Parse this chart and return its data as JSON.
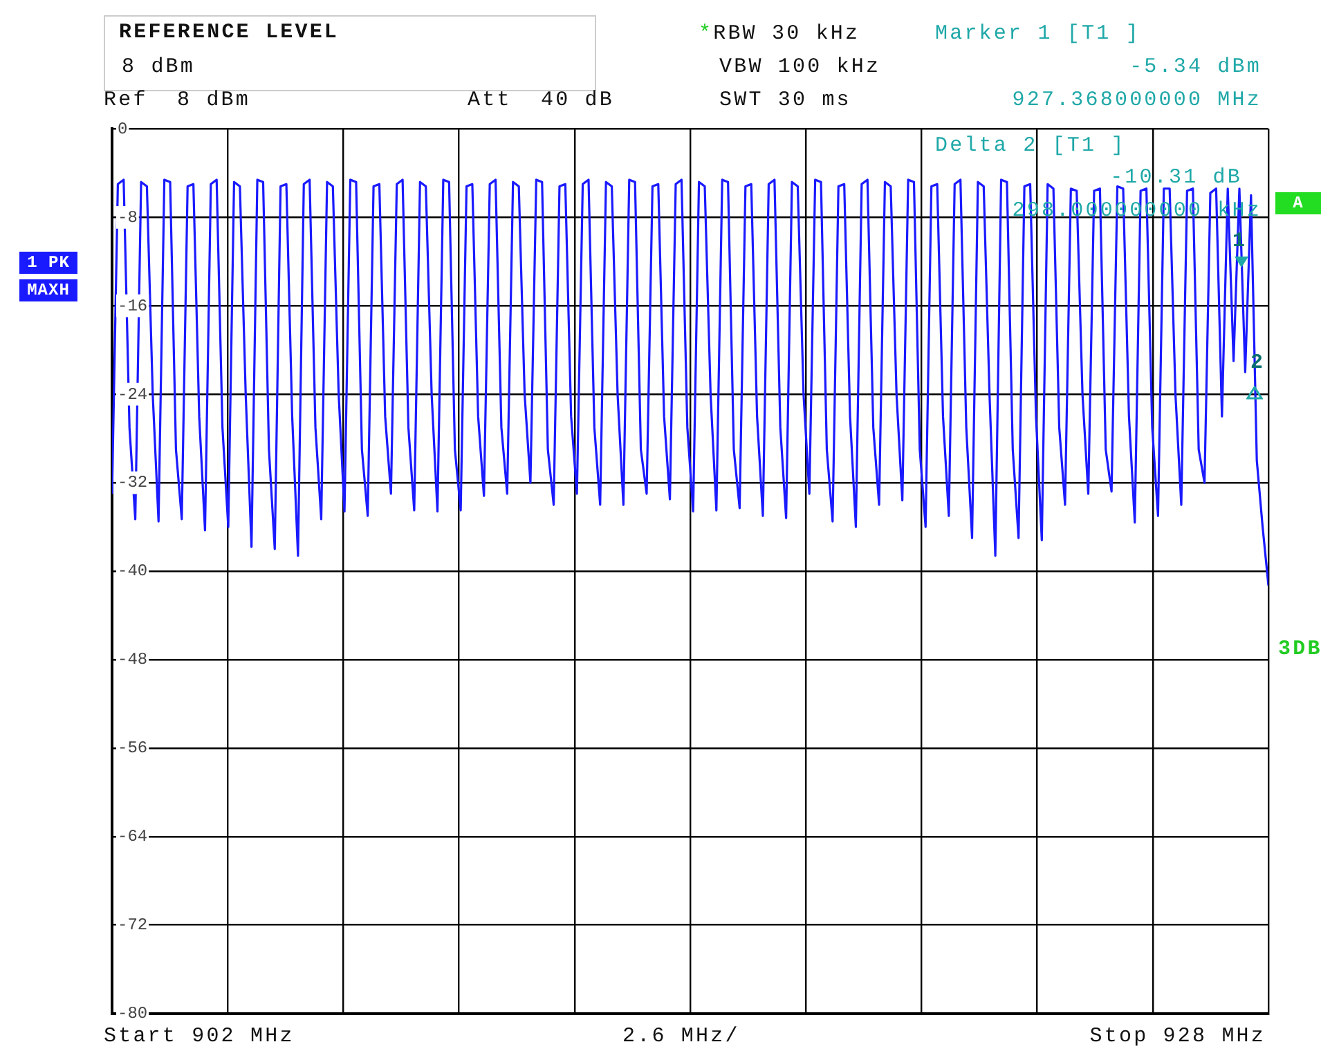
{
  "chart_data": {
    "type": "line",
    "ylim": [
      -80,
      0
    ],
    "categories": [
      null,
      null,
      null,
      null,
      null,
      null,
      null,
      null,
      null,
      null,
      null,
      null,
      null,
      null,
      null,
      null,
      null,
      null,
      null,
      null,
      null,
      null,
      null,
      null,
      null,
      null,
      null,
      null,
      null,
      null,
      null,
      null,
      null,
      null,
      null,
      null,
      null,
      null,
      null,
      null,
      null,
      null,
      null,
      null,
      null,
      null,
      null,
      null,
      null,
      null,
      null,
      null,
      null,
      null,
      null,
      null,
      null,
      null,
      null,
      null,
      null,
      null,
      null,
      null,
      null,
      null,
      null,
      null,
      null,
      null,
      null,
      null,
      null,
      null,
      null,
      null,
      null,
      null,
      null,
      null,
      null,
      null,
      null,
      null,
      null,
      null,
      null,
      null,
      null,
      null,
      null,
      null,
      null,
      null,
      null,
      null,
      null,
      null,
      null,
      null,
      null,
      null,
      null,
      null,
      null,
      null,
      null,
      null,
      null,
      null,
      null,
      null,
      null,
      null,
      null,
      null,
      null,
      null,
      null,
      null,
      null,
      null,
      null,
      null,
      null,
      null,
      null,
      null,
      null,
      null,
      null,
      null,
      null,
      null,
      null,
      null,
      null,
      null,
      null,
      null,
      null,
      null,
      null,
      null,
      null,
      null,
      null,
      null,
      null,
      null,
      null,
      null,
      null,
      null,
      null,
      null,
      null,
      null,
      null,
      null,
      null,
      null,
      null,
      null,
      null,
      null,
      null,
      null,
      null,
      null,
      null,
      null,
      null,
      null,
      null,
      null,
      null,
      null,
      null,
      null,
      null,
      null,
      null,
      null,
      null,
      null,
      null,
      null,
      null,
      null,
      null,
      null,
      null,
      null,
      null,
      null,
      null,
      null,
      null,
      null
    ],
    "yticks": [
      0,
      -8,
      -16,
      -24,
      -32,
      -40,
      -48,
      -56,
      -64,
      -72,
      -80
    ],
    "tick_labels": "y",
    "grid": true,
    "marker": "none",
    "line_style": "solid",
    "series": [
      {
        "color": "#1a1aff",
        "values": [
          -33,
          -5,
          -4.6,
          -27,
          -35.3,
          -4.8,
          -5.2,
          -24,
          -35.5,
          -4.6,
          -4.8,
          -29,
          -35.3,
          -5.2,
          -5,
          -26,
          -36.3,
          -5,
          -4.6,
          -27,
          -36,
          -4.8,
          -5.2,
          -24,
          -37.8,
          -4.6,
          -4.8,
          -29,
          -38,
          -5.2,
          -5,
          -26,
          -38.6,
          -5,
          -4.6,
          -27,
          -35.3,
          -4.8,
          -5.2,
          -24,
          -34.6,
          -4.6,
          -4.8,
          -29,
          -35,
          -5.2,
          -5,
          -26,
          -33,
          -5,
          -4.6,
          -27,
          -34.5,
          -4.8,
          -5.2,
          -24,
          -34.6,
          -4.6,
          -4.8,
          -29,
          -34.5,
          -5.2,
          -5,
          -26,
          -33.2,
          -5,
          -4.6,
          -27,
          -33,
          -4.8,
          -5.2,
          -24,
          -32,
          -4.6,
          -4.8,
          -29,
          -34,
          -5.2,
          -5,
          -26,
          -33,
          -5,
          -4.6,
          -27,
          -34,
          -4.8,
          -5.2,
          -24,
          -34,
          -4.6,
          -4.8,
          -29,
          -33,
          -5.2,
          -5,
          -26,
          -33.5,
          -5,
          -4.6,
          -27,
          -34.6,
          -4.8,
          -5.2,
          -24,
          -34.5,
          -4.6,
          -4.8,
          -29,
          -34.3,
          -5.2,
          -5,
          -26,
          -35,
          -5,
          -4.6,
          -27,
          -35.2,
          -4.8,
          -5.2,
          -24,
          -33,
          -4.6,
          -4.8,
          -29,
          -35.5,
          -5.2,
          -5,
          -26,
          -36,
          -5,
          -4.6,
          -27,
          -34,
          -4.8,
          -5.2,
          -24,
          -33.6,
          -4.6,
          -4.8,
          -29,
          -36,
          -5.2,
          -5,
          -26,
          -35,
          -5,
          -4.6,
          -27,
          -37,
          -4.8,
          -5.2,
          -24,
          -38.6,
          -4.6,
          -4.8,
          -29,
          -37,
          -5.2,
          -5,
          -26,
          -37.2,
          -5,
          -5.4,
          -27,
          -34,
          -5.4,
          -5.6,
          -24,
          -33,
          -5.6,
          -5.4,
          -29,
          -32.8,
          -5.2,
          -5.4,
          -26,
          -35.6,
          -5.6,
          -5.4,
          -27,
          -35,
          -5.4,
          -5.4,
          -24,
          -34,
          -5.6,
          -5.4,
          -29,
          -32,
          -5.8,
          -5.4,
          -26,
          -5.4,
          -21,
          -5.4,
          -22,
          -6,
          -30,
          -36,
          -41.3
        ]
      }
    ],
    "annotations": [
      "REFERENCE LEVEL",
      "8 dBm",
      "Ref  8 dBm",
      "Att  40 dB",
      "*RBW 30 kHz",
      "VBW 100 kHz",
      "SWT 30 ms",
      "Marker 1 [T1 ]",
      "-5.34 dBm",
      "927.368000000 MHz",
      "Delta 2 [T1 ]",
      "-10.31 dB",
      "298.000000000 kHz",
      "1 PK",
      "MAXH",
      "A",
      "3DB",
      "Start 902 MHz",
      "2.6 MHz/",
      "Stop 928 MHz",
      "1",
      "2"
    ]
  }
}
